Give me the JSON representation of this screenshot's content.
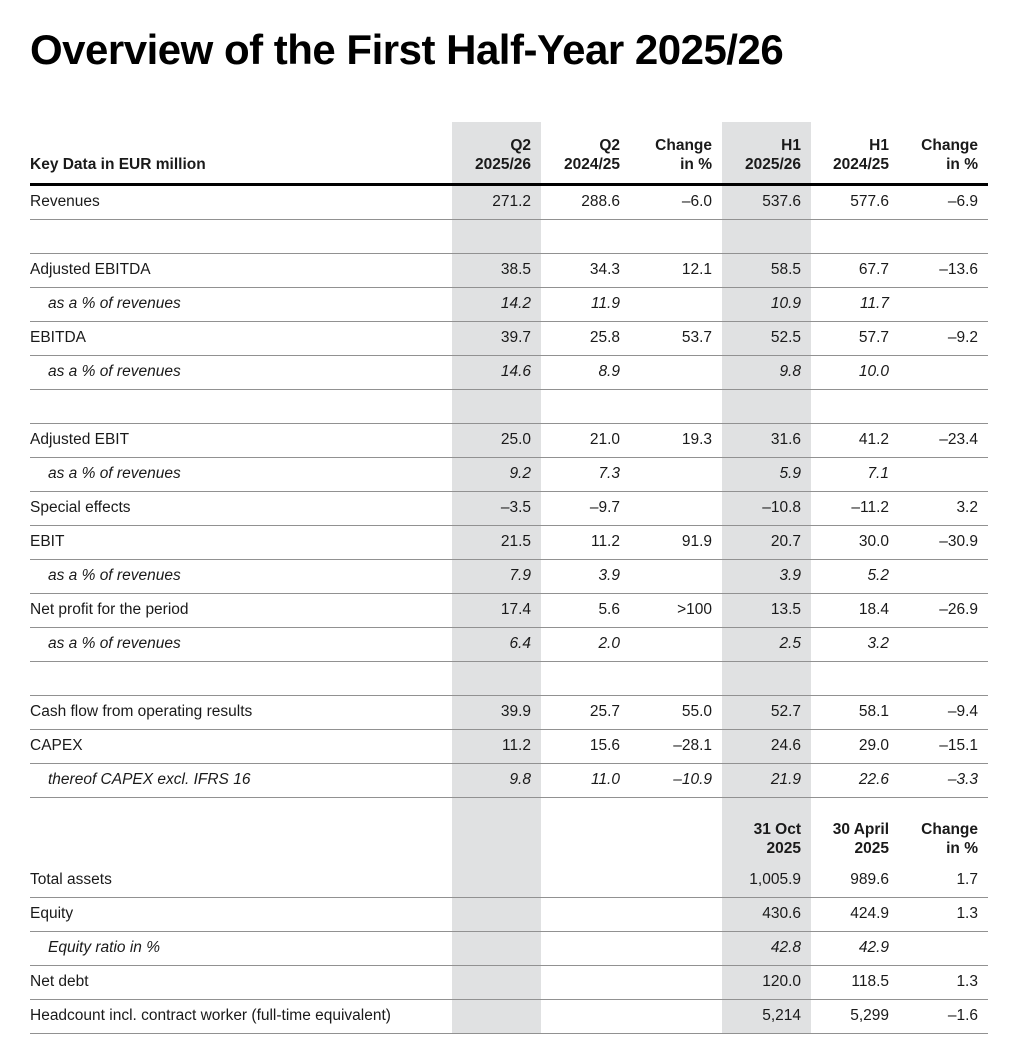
{
  "page": {
    "title": "Overview of the First Half-Year 2025/26"
  },
  "colors": {
    "highlight_column": "#e0e1e2",
    "rule_strong": "#000000",
    "rule_light": "#919191"
  },
  "table": {
    "corner_label": "Key Data in EUR million",
    "columns": [
      {
        "line1": "Q2",
        "line2": "2025/26",
        "highlight": true
      },
      {
        "line1": "Q2",
        "line2": "2024/25",
        "highlight": false
      },
      {
        "line1": "Change",
        "line2": "in %",
        "highlight": false
      },
      {
        "line1": "H1",
        "line2": "2025/26",
        "highlight": true
      },
      {
        "line1": "H1",
        "line2": "2024/25",
        "highlight": false
      },
      {
        "line1": "Change",
        "line2": "in %",
        "highlight": false
      }
    ],
    "rows": [
      {
        "style": "normal",
        "label": "Revenues",
        "values": [
          "271.2",
          "288.6",
          "–6.0",
          "537.6",
          "577.6",
          "–6.9"
        ]
      },
      {
        "style": "spacer",
        "label": "",
        "values": [
          "",
          "",
          "",
          "",
          "",
          ""
        ]
      },
      {
        "style": "normal",
        "label": "Adjusted EBITDA",
        "values": [
          "38.5",
          "34.3",
          "12.1",
          "58.5",
          "67.7",
          "–13.6"
        ]
      },
      {
        "style": "italic",
        "label": "as a % of revenues",
        "values": [
          "14.2",
          "11.9",
          "",
          "10.9",
          "11.7",
          ""
        ]
      },
      {
        "style": "normal",
        "label": "EBITDA",
        "values": [
          "39.7",
          "25.8",
          "53.7",
          "52.5",
          "57.7",
          "–9.2"
        ]
      },
      {
        "style": "italic",
        "label": "as a % of revenues",
        "values": [
          "14.6",
          "8.9",
          "",
          "9.8",
          "10.0",
          ""
        ]
      },
      {
        "style": "spacer",
        "label": "",
        "values": [
          "",
          "",
          "",
          "",
          "",
          ""
        ]
      },
      {
        "style": "normal",
        "label": "Adjusted EBIT",
        "values": [
          "25.0",
          "21.0",
          "19.3",
          "31.6",
          "41.2",
          "–23.4"
        ]
      },
      {
        "style": "italic",
        "label": "as a % of revenues",
        "values": [
          "9.2",
          "7.3",
          "",
          "5.9",
          "7.1",
          ""
        ]
      },
      {
        "style": "normal",
        "label": "Special effects",
        "values": [
          "–3.5",
          "–9.7",
          "",
          "–10.8",
          "–11.2",
          "3.2"
        ]
      },
      {
        "style": "normal",
        "label": "EBIT",
        "values": [
          "21.5",
          "11.2",
          "91.9",
          "20.7",
          "30.0",
          "–30.9"
        ]
      },
      {
        "style": "italic",
        "label": "as a % of revenues",
        "values": [
          "7.9",
          "3.9",
          "",
          "3.9",
          "5.2",
          ""
        ]
      },
      {
        "style": "normal",
        "label": "Net profit for the period",
        "values": [
          "17.4",
          "5.6",
          ">100",
          "13.5",
          "18.4",
          "–26.9"
        ]
      },
      {
        "style": "italic",
        "label": "as a % of revenues",
        "values": [
          "6.4",
          "2.0",
          "",
          "2.5",
          "3.2",
          ""
        ]
      },
      {
        "style": "spacer",
        "label": "",
        "values": [
          "",
          "",
          "",
          "",
          "",
          ""
        ]
      },
      {
        "style": "normal",
        "label": "Cash flow from operating results",
        "values": [
          "39.9",
          "25.7",
          "55.0",
          "52.7",
          "58.1",
          "–9.4"
        ]
      },
      {
        "style": "normal",
        "label": "CAPEX",
        "values": [
          "11.2",
          "15.6",
          "–28.1",
          "24.6",
          "29.0",
          "–15.1"
        ]
      },
      {
        "style": "italic",
        "label": "thereof CAPEX excl. IFRS 16",
        "values": [
          "9.8",
          "11.0",
          "–10.9",
          "21.9",
          "22.6",
          "–3.3"
        ]
      },
      {
        "style": "second-header",
        "label": "",
        "header": [
          {
            "line1": "31 Oct",
            "line2": "2025"
          },
          {
            "line1": "30 April",
            "line2": "2025"
          },
          {
            "line1": "Change",
            "line2": "in %"
          }
        ]
      },
      {
        "style": "normal",
        "label": "Total assets",
        "values": [
          "",
          "",
          "",
          "1,005.9",
          "989.6",
          "1.7"
        ]
      },
      {
        "style": "normal",
        "label": "Equity",
        "values": [
          "",
          "",
          "",
          "430.6",
          "424.9",
          "1.3"
        ]
      },
      {
        "style": "italic",
        "label": "Equity ratio in %",
        "values": [
          "",
          "",
          "",
          "42.8",
          "42.9",
          ""
        ]
      },
      {
        "style": "normal",
        "label": "Net debt",
        "values": [
          "",
          "",
          "",
          "120.0",
          "118.5",
          "1.3"
        ]
      },
      {
        "style": "normal",
        "label": "Headcount incl. contract worker (full-time equivalent)",
        "values": [
          "",
          "",
          "",
          "5,214",
          "5,299",
          "–1.6"
        ]
      }
    ]
  }
}
